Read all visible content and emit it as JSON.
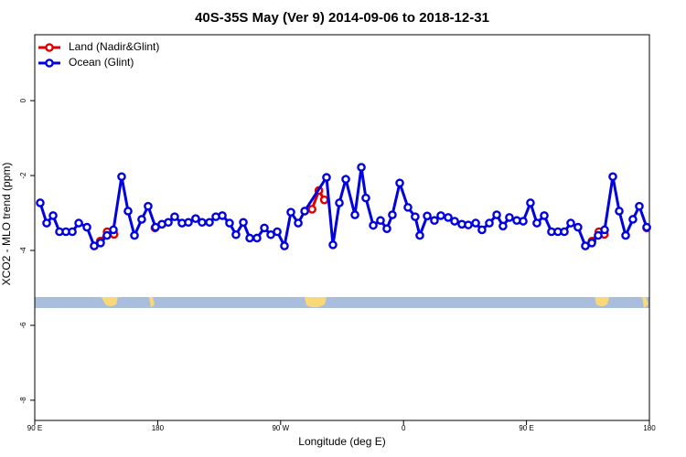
{
  "chart_data": {
    "type": "line",
    "title": "40S-35S May (Ver 9)   2014-09-06 to 2018-12-31",
    "xlabel": "Longitude (deg E)",
    "ylabel": "XCO2 - MLO trend (ppm)",
    "xlim": [
      90,
      540
    ],
    "ylim": [
      -8.54,
      1.76
    ],
    "xticks": [
      {
        "value": 90,
        "label": "90 E"
      },
      180,
      {
        "value": 270,
        "label": "90 W"
      },
      {
        "value": 360,
        "label": "0"
      },
      {
        "value": 450,
        "label": "90 E"
      },
      {
        "value": 540,
        "label": "180"
      }
    ],
    "yticks": [
      -8,
      -6,
      -4,
      -2,
      0
    ],
    "legend": "upper left",
    "series": [
      {
        "name": "Land (Nadir&Glint)",
        "color": "#e00000",
        "x": [
          138,
          143,
          148,
          null,
          178,
          null,
          293,
          298,
          302,
          null,
          498,
          503,
          507,
          null,
          538
        ],
        "values": [
          -3.75,
          -3.5,
          -3.57,
          null,
          -3.4,
          null,
          -2.9,
          -2.4,
          -2.65,
          null,
          -3.75,
          -3.5,
          -3.57,
          null,
          -3.4
        ]
      },
      {
        "name": "Ocean (Glint)",
        "color": "#0000e0",
        "x": [
          94,
          98.7,
          103.4,
          108.1,
          112.8,
          117.5,
          122.2,
          128.2,
          133.5,
          138.2,
          142.9,
          147.6,
          153.6,
          158.3,
          163,
          168.3,
          173,
          178.4,
          183.1,
          187.8,
          192.4,
          197.8,
          202.5,
          207.8,
          212.5,
          217.9,
          222.6,
          227.3,
          232.6,
          237.3,
          242.7,
          247.4,
          252.7,
          258.1,
          262.8,
          267.5,
          272.8,
          277.5,
          282.9,
          287.6,
          303.6,
          308.3,
          313,
          317.7,
          324.4,
          329.1,
          332.4,
          337.8,
          343.1,
          347.8,
          351.8,
          357.2,
          363.2,
          368.5,
          371.9,
          377.3,
          382.6,
          387.3,
          392.7,
          397.4,
          402.7,
          407.4,
          412.8,
          417.4,
          422.8,
          428.2,
          432.8,
          437.5,
          442.9,
          447.6,
          452.9,
          457.6,
          463,
          468.3,
          473,
          477.7,
          482.4,
          487.7,
          493.1,
          497.8,
          502.5,
          507.2,
          513.2,
          517.9,
          522.6,
          527.9,
          532.6,
          538
        ],
        "values": [
          -2.73,
          -3.27,
          -3.07,
          -3.5,
          -3.5,
          -3.5,
          -3.27,
          -3.38,
          -3.88,
          -3.8,
          -3.6,
          -3.45,
          -2.03,
          -2.95,
          -3.6,
          -3.17,
          -2.82,
          -3.38,
          -3.3,
          -3.25,
          -3.1,
          -3.27,
          -3.25,
          -3.15,
          -3.25,
          -3.25,
          -3.1,
          -3.07,
          -3.27,
          -3.58,
          -3.25,
          -3.67,
          -3.67,
          -3.4,
          -3.58,
          -3.5,
          -3.88,
          -2.98,
          -3.27,
          -2.95,
          -2.05,
          -3.85,
          -2.73,
          -2.1,
          -3.05,
          -1.78,
          -2.6,
          -3.33,
          -3.2,
          -3.42,
          -3.05,
          -2.2,
          -2.85,
          -3.1,
          -3.6,
          -3.08,
          -3.2,
          -3.07,
          -3.12,
          -3.22,
          -3.3,
          -3.32,
          -3.27,
          -3.45,
          -3.27,
          -3.05,
          -3.35,
          -3.12,
          -3.2,
          -3.22,
          -2.73,
          -3.27,
          -3.07,
          -3.5,
          -3.5,
          -3.5,
          -3.27,
          -3.38,
          -3.88,
          -3.8,
          -3.6,
          -3.45,
          -2.03,
          -2.95,
          -3.6,
          -3.17,
          -2.82,
          -3.38
        ]
      }
    ]
  }
}
